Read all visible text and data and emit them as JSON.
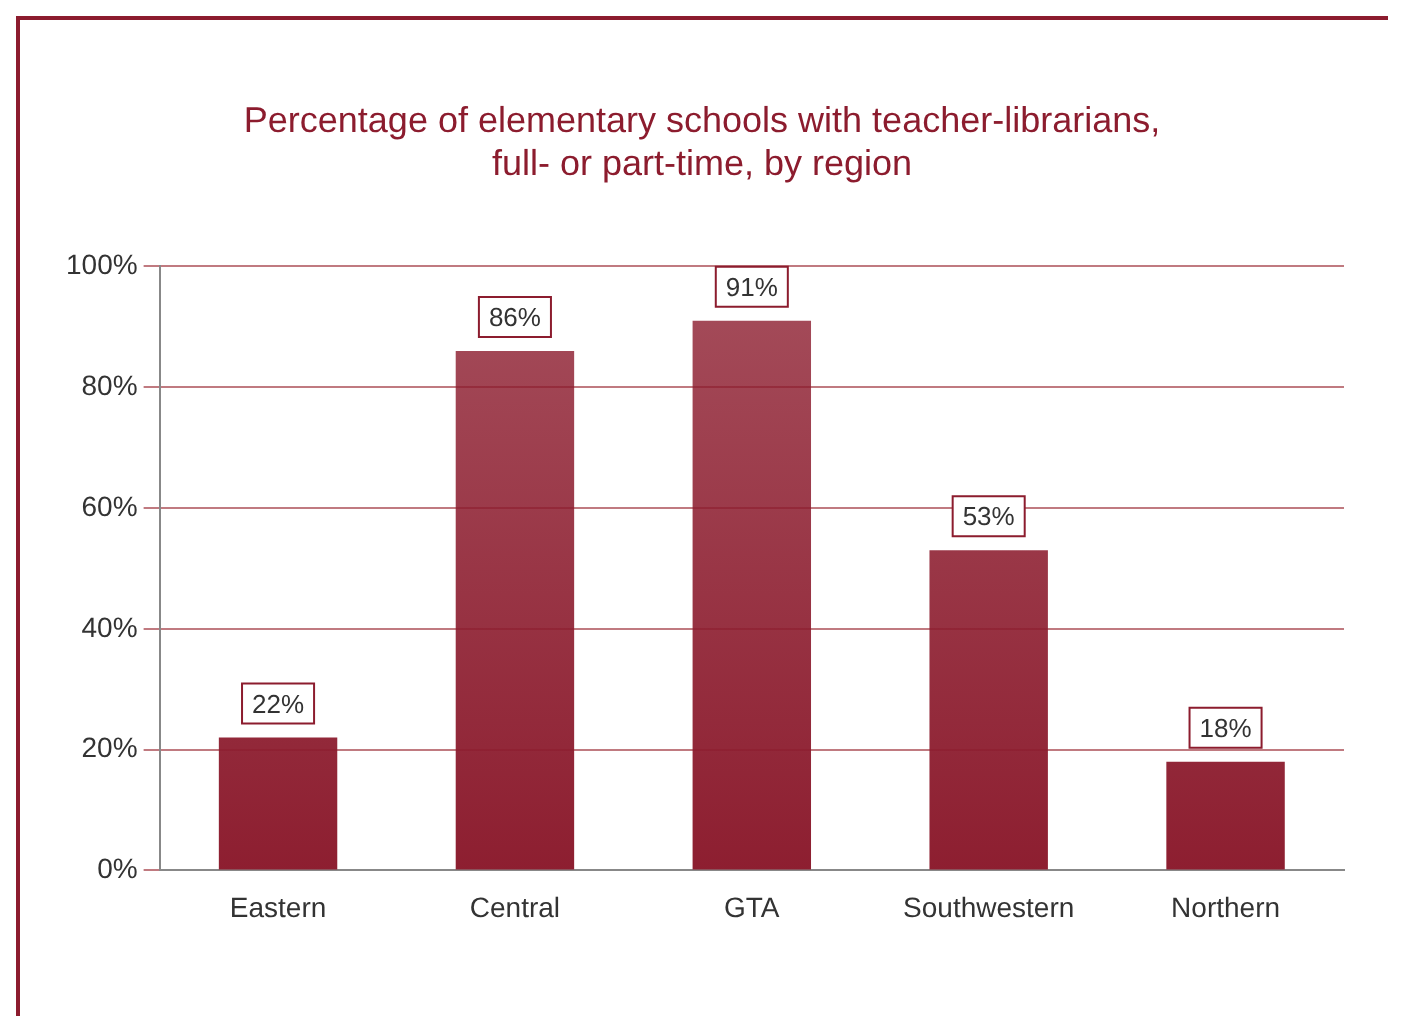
{
  "chart_data": {
    "type": "bar",
    "title": "Percentage of elementary schools with teacher-librarians, full- or part-time, by region",
    "categories": [
      "Eastern",
      "Central",
      "GTA",
      "Southwestern",
      "Northern"
    ],
    "values": [
      22,
      86,
      91,
      53,
      18
    ],
    "value_labels": [
      "22%",
      "86%",
      "91%",
      "53%",
      "18%"
    ],
    "color": "#8c1c2e",
    "ylim": [
      0,
      100
    ],
    "yticks": [
      {
        "value": 0,
        "label": "0%"
      },
      {
        "value": 20,
        "label": "20%"
      },
      {
        "value": 40,
        "label": "40%"
      },
      {
        "value": 60,
        "label": "60%"
      },
      {
        "value": 80,
        "label": "80%"
      },
      {
        "value": 100,
        "label": "100%"
      }
    ],
    "grid": "y",
    "legend": false
  }
}
